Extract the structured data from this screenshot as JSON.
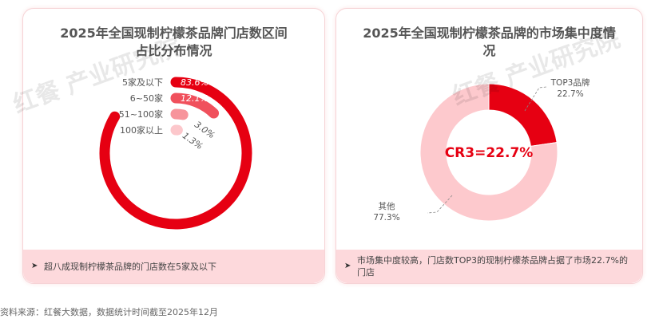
{
  "chart_data": [
    {
      "type": "radial-bar",
      "title": "2025年全国现制柠檬茶品牌门店数区间占比分布情况",
      "categories": [
        "5家及以下",
        "6~50家",
        "51~100家",
        "100家以上"
      ],
      "values": [
        83.6,
        12.1,
        3.0,
        1.3
      ],
      "labels": [
        "83.6%",
        "12.1%",
        "3.0%",
        "1.3%"
      ],
      "colors": [
        "#e60012",
        "#f0505c",
        "#f7949b",
        "#fcc7cb"
      ],
      "note": "超八成现制柠檬茶品牌的门店数在5家及以下"
    },
    {
      "type": "pie",
      "subtype": "donut",
      "title": "2025年全国现制柠檬茶品牌的市场集中度情况",
      "categories": [
        "TOP3品牌",
        "其他"
      ],
      "values": [
        22.7,
        77.3
      ],
      "labels": [
        "22.7%",
        "77.3%"
      ],
      "colors": [
        "#e60012",
        "#fdc9cd"
      ],
      "center_label": "CR3=22.7%",
      "note": "市场集中度较高，门店数TOP3的现制柠檬茶品牌占据了市场22.7%的门店"
    }
  ],
  "watermark": "红餐 产业研究院",
  "source": "资料来源：红餐大数据，数据统计时间截至2025年12月"
}
